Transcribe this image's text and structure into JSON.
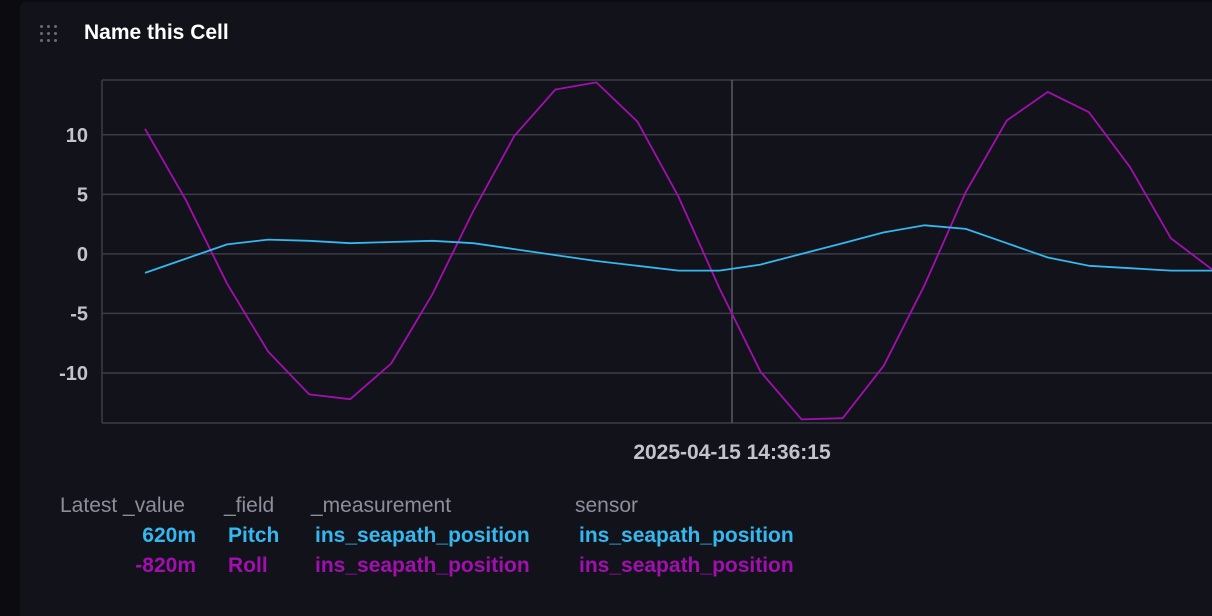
{
  "cell": {
    "title": "Name this Cell"
  },
  "colors": {
    "pitch": "#34b8ef",
    "roll": "#a20faf",
    "grid": "#3c3c48",
    "axis_text": "#c3c3cc"
  },
  "hover": {
    "timestamp": "2025-04-15 14:36:15"
  },
  "chart_data": {
    "type": "line",
    "xlabel": "",
    "ylabel": "",
    "ylim": [
      -14.2,
      14.6
    ],
    "yticks": [
      10,
      5,
      0,
      -5,
      -10
    ],
    "grid": true,
    "x": [
      0,
      1,
      2,
      3,
      4,
      5,
      6,
      7,
      8,
      9,
      10,
      11,
      12,
      13,
      14,
      15,
      16,
      17,
      18,
      19,
      20,
      21,
      22,
      23,
      24,
      25,
      26
    ],
    "series": [
      {
        "name": "Pitch",
        "color": "#34b8ef",
        "values": [
          -1.6,
          -0.4,
          0.8,
          1.2,
          1.1,
          0.9,
          1.0,
          1.1,
          0.9,
          0.4,
          -0.1,
          -0.6,
          -1.0,
          -1.4,
          -1.4,
          -0.9,
          0.0,
          0.9,
          1.8,
          2.4,
          2.1,
          0.9,
          -0.3,
          -1.0,
          -1.2,
          -1.4,
          -1.4
        ]
      },
      {
        "name": "Roll",
        "color": "#a20faf",
        "values": [
          10.5,
          4.5,
          -2.5,
          -8.2,
          -11.8,
          -12.2,
          -9.2,
          -3.4,
          3.6,
          9.9,
          13.8,
          14.4,
          11.1,
          4.8,
          -2.9,
          -9.9,
          -13.9,
          -13.8,
          -9.4,
          -2.6,
          5.2,
          11.2,
          13.6,
          11.9,
          7.3,
          1.3,
          -1.3
        ]
      }
    ]
  },
  "legend": {
    "headers": {
      "latest_value": "Latest _value",
      "field": "_field",
      "measurement": "_measurement",
      "sensor": "sensor"
    },
    "rows": [
      {
        "value": "620m",
        "field": "Pitch",
        "measurement": "ins_seapath_position",
        "sensor": "ins_seapath_position",
        "color": "#34b8ef"
      },
      {
        "value": "-820m",
        "field": "Roll",
        "measurement": "ins_seapath_position",
        "sensor": "ins_seapath_position",
        "color": "#a20faf"
      }
    ]
  }
}
